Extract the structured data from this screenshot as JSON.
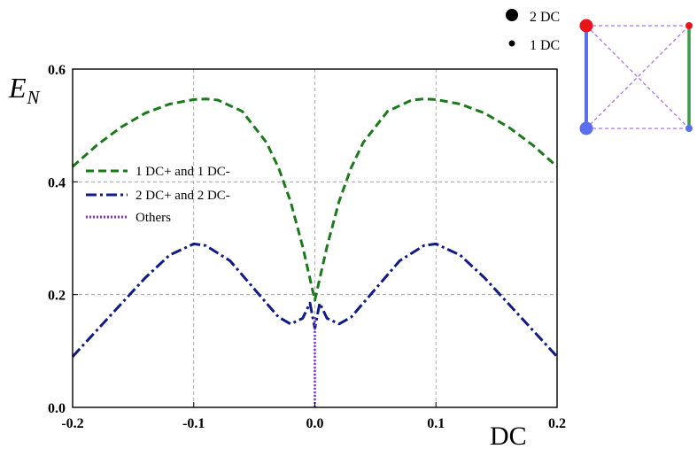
{
  "chart_data": {
    "type": "line",
    "title": "",
    "xlabel": "DC",
    "ylabel": "E_N",
    "ylabel_main": "E",
    "ylabel_sub": "N",
    "xlim": [
      -0.2,
      0.2
    ],
    "ylim": [
      0.0,
      0.6
    ],
    "grid": true,
    "grid_x": [
      -0.1,
      0.0,
      0.1
    ],
    "grid_y": [
      0.2,
      0.4
    ],
    "x_ticks": [
      {
        "value": -0.2,
        "label": "-0.2"
      },
      {
        "value": -0.1,
        "label": "-0.1"
      },
      {
        "value": 0.0,
        "label": "0.0"
      },
      {
        "value": 0.1,
        "label": "0.1"
      },
      {
        "value": 0.2,
        "label": "0.2"
      }
    ],
    "y_ticks": [
      {
        "value": 0.0,
        "label": "0.0"
      },
      {
        "value": 0.2,
        "label": "0.2"
      },
      {
        "value": 0.4,
        "label": "0.4"
      },
      {
        "value": 0.6,
        "label": "0.6"
      }
    ],
    "legend_position": "left",
    "series": [
      {
        "name": "1 DC+ and 1 DC-",
        "color": "#1a7a1a",
        "style": "dashed",
        "x": [
          -0.2,
          -0.18,
          -0.16,
          -0.14,
          -0.12,
          -0.1,
          -0.09,
          -0.08,
          -0.06,
          -0.04,
          -0.03,
          -0.02,
          -0.01,
          0.0,
          0.01,
          0.02,
          0.03,
          0.04,
          0.06,
          0.08,
          0.09,
          0.1,
          0.12,
          0.14,
          0.16,
          0.18,
          0.2
        ],
        "y": [
          0.427,
          0.465,
          0.497,
          0.522,
          0.538,
          0.546,
          0.547,
          0.545,
          0.525,
          0.47,
          0.425,
          0.365,
          0.285,
          0.19,
          0.285,
          0.365,
          0.425,
          0.47,
          0.525,
          0.545,
          0.547,
          0.546,
          0.538,
          0.522,
          0.497,
          0.465,
          0.427
        ]
      },
      {
        "name": "2 DC+ and 2 DC-",
        "color": "#0f1b8a",
        "style": "dashdot",
        "x": [
          -0.2,
          -0.17,
          -0.14,
          -0.12,
          -0.1,
          -0.09,
          -0.07,
          -0.05,
          -0.03,
          -0.02,
          -0.01,
          -0.004,
          0.0,
          0.004,
          0.01,
          0.02,
          0.03,
          0.05,
          0.07,
          0.09,
          0.1,
          0.12,
          0.14,
          0.17,
          0.2
        ],
        "y": [
          0.09,
          0.16,
          0.23,
          0.27,
          0.29,
          0.287,
          0.26,
          0.21,
          0.16,
          0.148,
          0.158,
          0.185,
          0.14,
          0.185,
          0.158,
          0.148,
          0.16,
          0.21,
          0.26,
          0.287,
          0.29,
          0.27,
          0.23,
          0.16,
          0.09
        ]
      },
      {
        "name": "Others",
        "color": "#8a2be2",
        "style": "dotted",
        "x": [
          0.0,
          0.0
        ],
        "y": [
          0.0,
          0.16
        ]
      }
    ]
  },
  "inset": {
    "legend_large_label": "2 DC",
    "legend_small_label": "1 DC",
    "node_red_color": "#e8141c",
    "node_blue_color": "#5a6ef0",
    "edge_blue_color": "#5a6ef0",
    "edge_green_color": "#3f9a4f",
    "edge_dashed_color": "#b070f0"
  }
}
